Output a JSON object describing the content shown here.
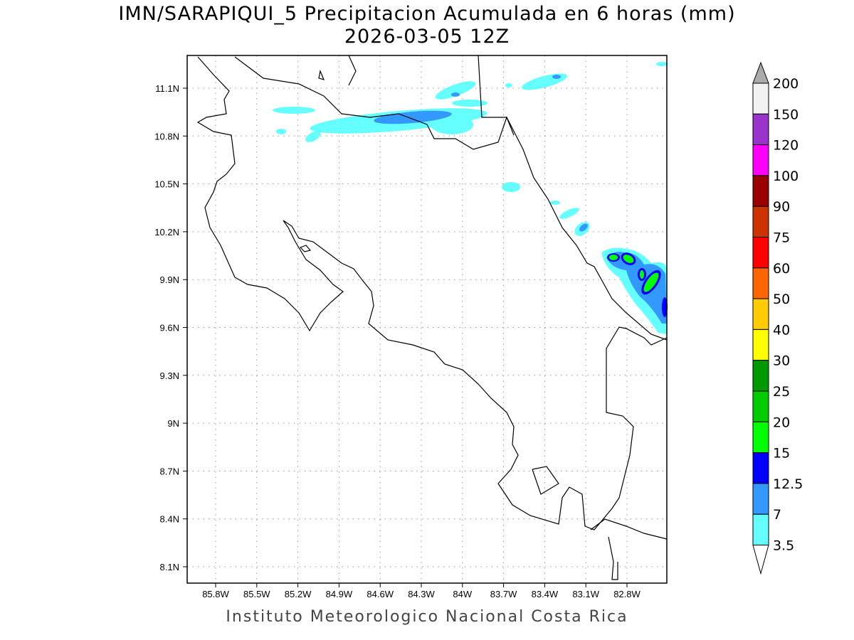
{
  "header": {
    "title": "IMN/SARAPIQUI_5 Precipitacion Acumulada en 6 horas (mm)",
    "subtitle": "2026-03-05 12Z"
  },
  "map": {
    "lon_labels": [
      "85.8W",
      "85.5W",
      "85.2W",
      "84.9W",
      "84.6W",
      "84.3W",
      "84W",
      "83.7W",
      "83.4W",
      "83.1W",
      "82.8W"
    ],
    "lat_labels": [
      "11.1N",
      "10.8N",
      "10.5N",
      "10.2N",
      "9.9N",
      "9.6N",
      "9.3N",
      "9N",
      "8.7N",
      "8.4N",
      "8.1N"
    ],
    "lon_range": [
      -85.98,
      -82.49
    ],
    "lat_range": [
      8.0,
      11.3
    ]
  },
  "colorbar": {
    "labels": [
      "200",
      "150",
      "120",
      "100",
      "90",
      "75",
      "60",
      "50",
      "40",
      "30",
      "25",
      "20",
      "15",
      "12.5",
      "7",
      "3.5"
    ],
    "colors": [
      "#f2f2f2",
      "#9933cc",
      "#ff00ff",
      "#990000",
      "#cc3300",
      "#ff0000",
      "#ff6600",
      "#ffcc00",
      "#ffff00",
      "#009900",
      "#00cc00",
      "#00ff00",
      "#0000ff",
      "#3399ff",
      "#66ffff"
    ],
    "over_color": "#aaaaaa",
    "under_color": "#ffffff"
  },
  "footer": {
    "text": "Instituto Meteorologico Nacional Costa Rica"
  }
}
